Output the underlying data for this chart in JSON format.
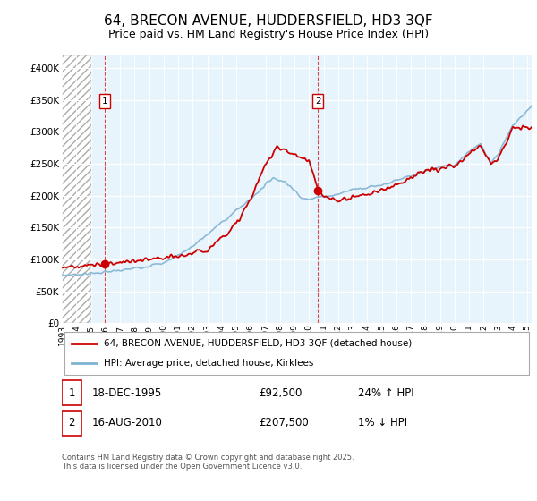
{
  "title_line1": "64, BRECON AVENUE, HUDDERSFIELD, HD3 3QF",
  "title_line2": "Price paid vs. HM Land Registry's House Price Index (HPI)",
  "legend_line1": "64, BRECON AVENUE, HUDDERSFIELD, HD3 3QF (detached house)",
  "legend_line2": "HPI: Average price, detached house, Kirklees",
  "footnote": "Contains HM Land Registry data © Crown copyright and database right 2025.\nThis data is licensed under the Open Government Licence v3.0.",
  "annotation1": {
    "num": "1",
    "date": "18-DEC-1995",
    "price": "£92,500",
    "hpi": "24% ↑ HPI"
  },
  "annotation2": {
    "num": "2",
    "date": "16-AUG-2010",
    "price": "£207,500",
    "hpi": "1% ↓ HPI"
  },
  "price_color": "#cc0000",
  "hpi_color": "#7fb3d3",
  "grid_bg": "#e8f4fc",
  "hatch_bg": "#ffffff",
  "ylim": [
    0,
    420000
  ],
  "yticks": [
    0,
    50000,
    100000,
    150000,
    200000,
    250000,
    300000,
    350000,
    400000
  ],
  "marker1_x": 1995.96,
  "marker1_y": 92500,
  "marker2_x": 2010.62,
  "marker2_y": 207500,
  "vline1_x": 1995.96,
  "vline2_x": 2010.62,
  "xlim_start": 1993,
  "xlim_end": 2025.3,
  "hatch_end_x": 1995.0
}
